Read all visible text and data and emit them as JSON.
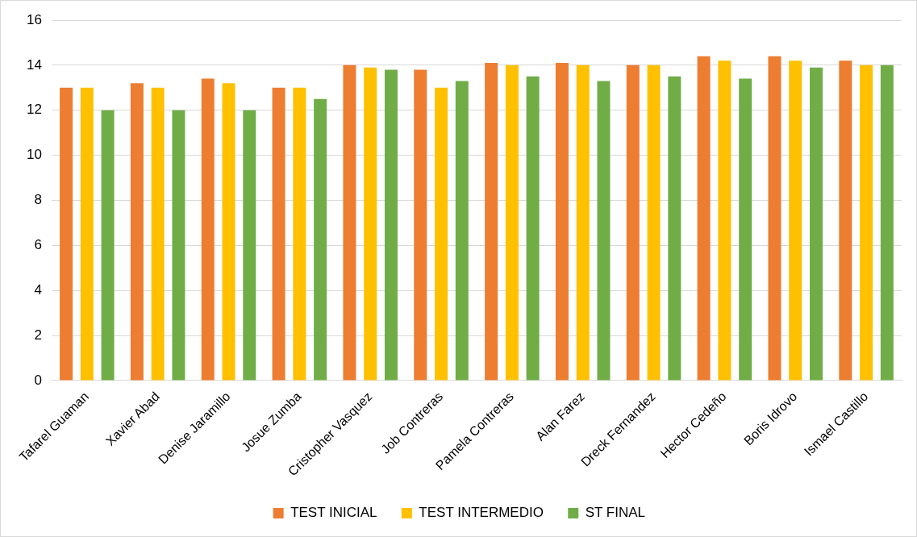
{
  "chart_data": {
    "type": "bar",
    "categories": [
      "Tafarel Guaman",
      "Xavier Abad",
      "Denise Jaramillo",
      "Josue Zumba",
      "Cristopher Vasquez",
      "Job Contreras",
      "Pamela Contreras",
      "Alan Farez",
      "Dreck Fernandez",
      "Hector Cedeño",
      "Boris Idrovo",
      "Ismael Castillo"
    ],
    "series": [
      {
        "name": "TEST INICIAL",
        "color": "#ed7d31",
        "values": [
          13,
          13.2,
          13.4,
          13,
          14,
          13.8,
          14.1,
          14.1,
          14,
          14.4,
          14.4,
          14.2
        ]
      },
      {
        "name": "TEST INTERMEDIO",
        "color": "#ffc000",
        "values": [
          13,
          13,
          13.2,
          13,
          13.9,
          13,
          14,
          14,
          14,
          14.2,
          14.2,
          14
        ]
      },
      {
        "name": "ST FINAL",
        "color": "#70ad47",
        "values": [
          12,
          12,
          12,
          12.5,
          13.8,
          13.3,
          13.5,
          13.3,
          13.5,
          13.4,
          13.9,
          14
        ]
      }
    ],
    "ylim": [
      0,
      16
    ],
    "yticks": [
      0,
      2,
      4,
      6,
      8,
      10,
      12,
      14,
      16
    ],
    "grid": "y",
    "legend": "bottom"
  }
}
